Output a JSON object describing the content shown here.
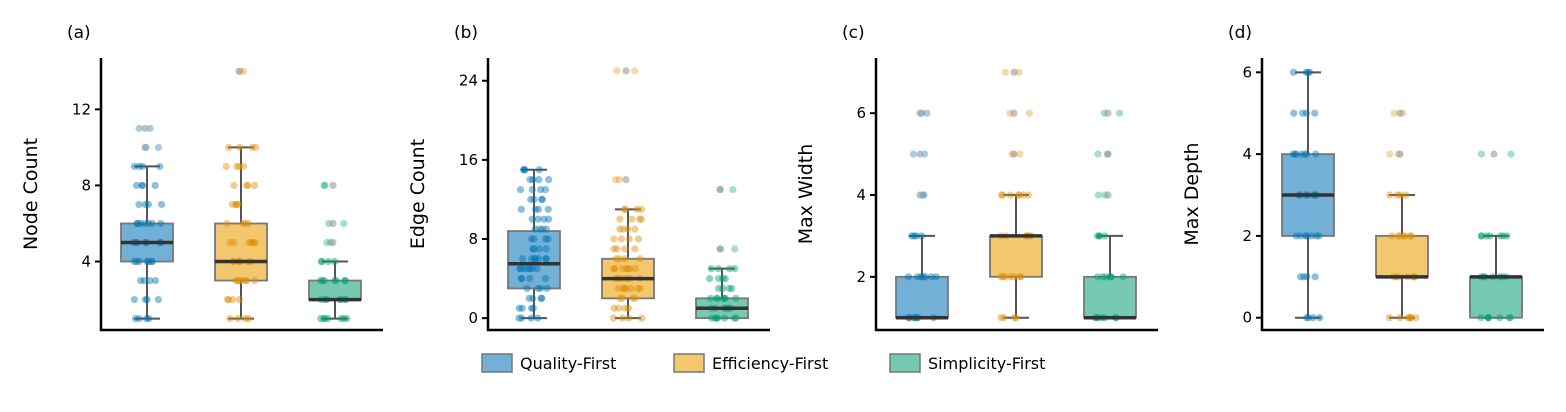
{
  "colors": {
    "Quality-First": "#0173b2",
    "Efficiency-First": "#de8f05",
    "Simplicity-First": "#029e73"
  },
  "fills": {
    "Quality-First": "#72b0d8",
    "Efficiency-First": "#f2c76e",
    "Simplicity-First": "#76c9b1"
  },
  "legend": {
    "items": [
      "Quality-First",
      "Efficiency-First",
      "Simplicity-First"
    ],
    "placement": "bottom-center"
  },
  "chart_data": [
    {
      "type": "box",
      "panel_label": "(a)",
      "ylabel": "Node Count",
      "yticks": [
        4,
        8,
        12
      ],
      "ylim": [
        0.4,
        14.7
      ],
      "categories": [
        "Quality-First",
        "Efficiency-First",
        "Simplicity-First"
      ],
      "series": [
        {
          "name": "Quality-First",
          "whislo": 1,
          "q1": 4,
          "median": 5,
          "q3": 6,
          "whishi": 9,
          "outliers": [
            10,
            11
          ],
          "points": [
            1,
            2,
            3,
            4,
            5,
            6,
            7,
            8,
            9,
            10,
            11
          ]
        },
        {
          "name": "Efficiency-First",
          "whislo": 1,
          "q1": 3,
          "median": 4,
          "q3": 6,
          "whishi": 10,
          "outliers": [
            14
          ],
          "points": [
            1,
            2,
            3,
            4,
            5,
            6,
            7,
            8,
            9,
            10,
            14
          ]
        },
        {
          "name": "Simplicity-First",
          "whislo": 1,
          "q1": 2,
          "median": 2,
          "q3": 3,
          "whishi": 4,
          "outliers": [
            5,
            6,
            8
          ],
          "points": [
            1,
            2,
            3,
            4,
            5,
            6,
            8
          ]
        }
      ]
    },
    {
      "type": "box",
      "panel_label": "(b)",
      "ylabel": "Edge Count",
      "yticks": [
        0,
        8,
        16,
        24
      ],
      "ylim": [
        -1.2,
        26.3
      ],
      "categories": [
        "Quality-First",
        "Efficiency-First",
        "Simplicity-First"
      ],
      "series": [
        {
          "name": "Quality-First",
          "whislo": 0,
          "q1": 3,
          "median": 5.5,
          "q3": 8.8,
          "whishi": 15,
          "outliers": [],
          "points": [
            0,
            1,
            2,
            3,
            4,
            5,
            6,
            7,
            8,
            9,
            10,
            11,
            12,
            13,
            14,
            15
          ]
        },
        {
          "name": "Efficiency-First",
          "whislo": 0,
          "q1": 2,
          "median": 4,
          "q3": 6,
          "whishi": 11,
          "outliers": [
            14,
            25
          ],
          "points": [
            0,
            1,
            2,
            3,
            4,
            5,
            6,
            7,
            8,
            9,
            10,
            11,
            14,
            25
          ]
        },
        {
          "name": "Simplicity-First",
          "whislo": 0,
          "q1": 0,
          "median": 1,
          "q3": 2,
          "whishi": 5,
          "outliers": [
            7,
            13
          ],
          "points": [
            0,
            1,
            2,
            3,
            4,
            5,
            7,
            13
          ]
        }
      ]
    },
    {
      "type": "box",
      "panel_label": "(c)",
      "ylabel": "Max Width",
      "yticks": [
        2,
        4,
        6
      ],
      "ylim": [
        0.7,
        7.35
      ],
      "categories": [
        "Quality-First",
        "Efficiency-First",
        "Simplicity-First"
      ],
      "series": [
        {
          "name": "Quality-First",
          "whislo": 1,
          "q1": 1,
          "median": 1,
          "q3": 2,
          "whishi": 3,
          "outliers": [
            4,
            5,
            6
          ],
          "points": [
            1,
            2,
            3,
            4,
            5,
            6
          ]
        },
        {
          "name": "Efficiency-First",
          "whislo": 1,
          "q1": 2,
          "median": 3,
          "q3": 3,
          "whishi": 4,
          "outliers": [
            5,
            6,
            7
          ],
          "points": [
            1,
            2,
            3,
            4,
            5,
            6,
            7
          ]
        },
        {
          "name": "Simplicity-First",
          "whislo": 1,
          "q1": 1,
          "median": 1,
          "q3": 2,
          "whishi": 3,
          "outliers": [
            4,
            5,
            6
          ],
          "points": [
            1,
            2,
            3,
            4,
            5,
            6
          ]
        }
      ]
    },
    {
      "type": "box",
      "panel_label": "(d)",
      "ylabel": "Max Depth",
      "yticks": [
        0,
        2,
        4,
        6
      ],
      "ylim": [
        -0.3,
        6.35
      ],
      "categories": [
        "Quality-First",
        "Efficiency-First",
        "Simplicity-First"
      ],
      "series": [
        {
          "name": "Quality-First",
          "whislo": 0,
          "q1": 2,
          "median": 3,
          "q3": 4,
          "whishi": 6,
          "outliers": [],
          "points": [
            0,
            1,
            2,
            3,
            4,
            5,
            6
          ]
        },
        {
          "name": "Efficiency-First",
          "whislo": 0,
          "q1": 1,
          "median": 1,
          "q3": 2,
          "whishi": 3,
          "outliers": [
            4,
            5
          ],
          "points": [
            0,
            1,
            2,
            3,
            4,
            5
          ]
        },
        {
          "name": "Simplicity-First",
          "whislo": 0,
          "q1": 0,
          "median": 1,
          "q3": 1,
          "whishi": 2,
          "outliers": [
            4
          ],
          "points": [
            0,
            1,
            2,
            4
          ]
        }
      ]
    }
  ]
}
